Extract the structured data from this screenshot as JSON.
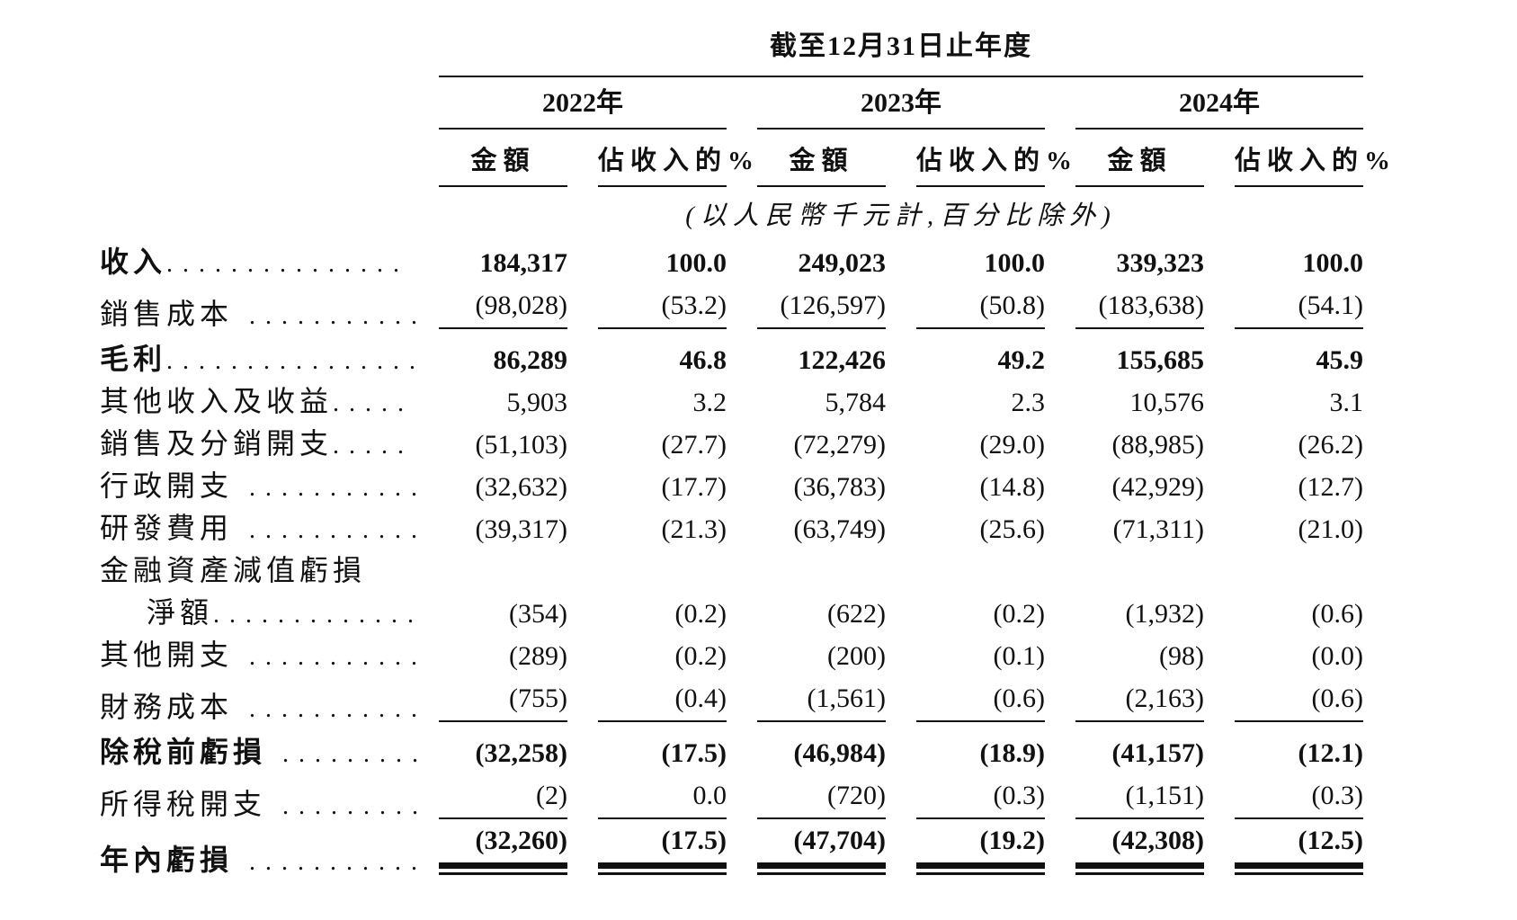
{
  "header": {
    "period_title": "截至12月31日止年度",
    "years": [
      "2022年",
      "2023年",
      "2024年"
    ],
    "amount_label": "金額",
    "pct_label": "佔收入的%",
    "note": "(以人民幣千元計,百分比除外)"
  },
  "rows": [
    {
      "label": "收入",
      "leader": "...............",
      "values": [
        "184,317",
        "100.0",
        "249,023",
        "100.0",
        "339,323",
        "100.0"
      ]
    },
    {
      "label": "銷售成本",
      "leader": " ...........",
      "values": [
        "(98,028)",
        "(53.2)",
        "(126,597)",
        "(50.8)",
        "(183,638)",
        "(54.1)"
      ]
    },
    {
      "label": "毛利",
      "leader": "................",
      "values": [
        "86,289",
        "46.8",
        "122,426",
        "49.2",
        "155,685",
        "45.9"
      ]
    },
    {
      "label": "其他收入及收益",
      "leader": ".....",
      "values": [
        "5,903",
        "3.2",
        "5,784",
        "2.3",
        "10,576",
        "3.1"
      ]
    },
    {
      "label": "銷售及分銷開支",
      "leader": ".....",
      "values": [
        "(51,103)",
        "(27.7)",
        "(72,279)",
        "(29.0)",
        "(88,985)",
        "(26.2)"
      ]
    },
    {
      "label": "行政開支",
      "leader": " ...........",
      "values": [
        "(32,632)",
        "(17.7)",
        "(36,783)",
        "(14.8)",
        "(42,929)",
        "(12.7)"
      ]
    },
    {
      "label": "研發費用",
      "leader": " ...........",
      "values": [
        "(39,317)",
        "(21.3)",
        "(63,749)",
        "(25.6)",
        "(71,311)",
        "(21.0)"
      ]
    },
    {
      "label": "金融資產減值虧損",
      "leader": "",
      "values": [
        "",
        "",
        "",
        "",
        "",
        ""
      ]
    },
    {
      "label": "淨額",
      "leader": ".............",
      "values": [
        "(354)",
        "(0.2)",
        "(622)",
        "(0.2)",
        "(1,932)",
        "(0.6)"
      ]
    },
    {
      "label": "其他開支",
      "leader": " ...........",
      "values": [
        "(289)",
        "(0.2)",
        "(200)",
        "(0.1)",
        "(98)",
        "(0.0)"
      ]
    },
    {
      "label": "財務成本",
      "leader": " ...........",
      "values": [
        "(755)",
        "(0.4)",
        "(1,561)",
        "(0.6)",
        "(2,163)",
        "(0.6)"
      ]
    },
    {
      "label": "除稅前虧損",
      "leader": " .........",
      "values": [
        "(32,258)",
        "(17.5)",
        "(46,984)",
        "(18.9)",
        "(41,157)",
        "(12.1)"
      ]
    },
    {
      "label": "所得稅開支",
      "leader": " .........",
      "values": [
        "(2)",
        "0.0",
        "(720)",
        "(0.3)",
        "(1,151)",
        "(0.3)"
      ]
    },
    {
      "label": "年內虧損",
      "leader": " ...........",
      "values": [
        "(32,260)",
        "(17.5)",
        "(47,704)",
        "(19.2)",
        "(42,308)",
        "(12.5)"
      ]
    }
  ],
  "colors": {
    "text": "#111111",
    "rule": "#111111",
    "background": "#ffffff"
  }
}
